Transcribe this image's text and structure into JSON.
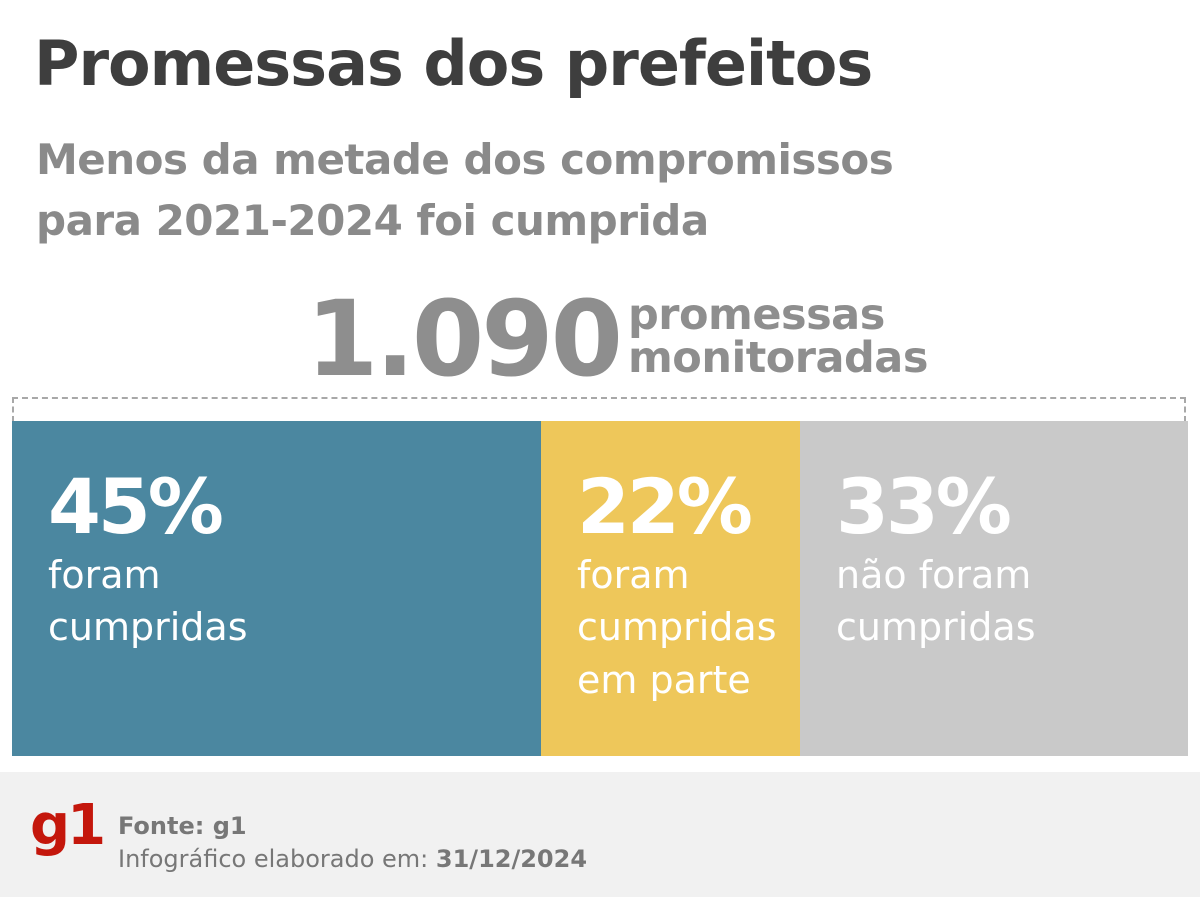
{
  "header": {
    "title": "Promessas dos prefeitos",
    "subtitle_line1": "Menos da metade dos compromissos",
    "subtitle_line2": "para 2021-2024 foi cumprida"
  },
  "total": {
    "value": "1.090",
    "label_line1": "promessas",
    "label_line2": "monitoradas"
  },
  "chart_data": {
    "type": "bar",
    "orientation": "horizontal-stacked-100",
    "categories": [
      "foram cumpridas",
      "foram cumpridas em parte",
      "não foram cumpridas"
    ],
    "values": [
      45,
      22,
      33
    ],
    "unit": "%",
    "segments": [
      {
        "percent_label": "45%",
        "value": 45,
        "lines": [
          "foram",
          "cumpridas"
        ],
        "color": "#4b87a0"
      },
      {
        "percent_label": "22%",
        "value": 22,
        "lines": [
          "foram",
          "cumpridas",
          "em parte"
        ],
        "color": "#eec75a"
      },
      {
        "percent_label": "33%",
        "value": 33,
        "lines": [
          "não foram",
          "cumpridas"
        ],
        "color": "#c9c9c9"
      }
    ]
  },
  "footer": {
    "logo": "g1",
    "source": "Fonte: g1",
    "credit_label": "Infográfico elaborado em:",
    "credit_date": "31/12/2024"
  }
}
